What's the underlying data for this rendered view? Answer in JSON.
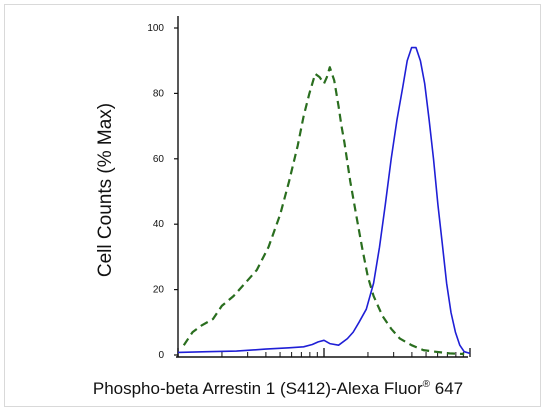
{
  "chart_data": {
    "type": "line",
    "title": "",
    "xlabel": {
      "main": "Phospho-beta Arrestin 1 (S412)-Alexa Fluor",
      "sup": "®",
      "tail": " 647"
    },
    "ylabel": "Cell Counts (% Max)",
    "xscale": "log",
    "xlim": [
      0,
      1
    ],
    "ylim": [
      0,
      100
    ],
    "yticks": [
      0,
      20,
      40,
      60,
      80,
      100
    ],
    "ytick_labels": [
      "0",
      "20",
      "40",
      "60",
      "80",
      "100"
    ],
    "grid": false,
    "series": [
      {
        "color": "#2a6e1f",
        "dash": "dashed",
        "points": [
          [
            0.02,
            3
          ],
          [
            0.05,
            7
          ],
          [
            0.08,
            9
          ],
          [
            0.12,
            11
          ],
          [
            0.15,
            15
          ],
          [
            0.19,
            18
          ],
          [
            0.23,
            22
          ],
          [
            0.27,
            26
          ],
          [
            0.31,
            33
          ],
          [
            0.35,
            43
          ],
          [
            0.38,
            53
          ],
          [
            0.41,
            64
          ],
          [
            0.43,
            73
          ],
          [
            0.45,
            80
          ],
          [
            0.47,
            86
          ],
          [
            0.485,
            85
          ],
          [
            0.5,
            83
          ],
          [
            0.51,
            85
          ],
          [
            0.52,
            88
          ],
          [
            0.535,
            84
          ],
          [
            0.55,
            76
          ],
          [
            0.56,
            70
          ],
          [
            0.57,
            65
          ],
          [
            0.59,
            53
          ],
          [
            0.61,
            43
          ],
          [
            0.63,
            33
          ],
          [
            0.65,
            24
          ],
          [
            0.67,
            18
          ],
          [
            0.7,
            12
          ],
          [
            0.73,
            8
          ],
          [
            0.76,
            5
          ],
          [
            0.8,
            3
          ],
          [
            0.84,
            1.5
          ],
          [
            0.88,
            1
          ],
          [
            0.93,
            0.5
          ],
          [
            0.98,
            0.3
          ]
        ]
      },
      {
        "color": "#1f1fd6",
        "dash": "solid",
        "points": [
          [
            0.0,
            0.8
          ],
          [
            0.1,
            1
          ],
          [
            0.2,
            1.2
          ],
          [
            0.3,
            1.8
          ],
          [
            0.38,
            2.2
          ],
          [
            0.43,
            2.5
          ],
          [
            0.46,
            3.2
          ],
          [
            0.48,
            4
          ],
          [
            0.5,
            4.5
          ],
          [
            0.52,
            3.5
          ],
          [
            0.55,
            3
          ],
          [
            0.58,
            5
          ],
          [
            0.6,
            7
          ],
          [
            0.62,
            10
          ],
          [
            0.645,
            14
          ],
          [
            0.67,
            22
          ],
          [
            0.69,
            33
          ],
          [
            0.71,
            46
          ],
          [
            0.73,
            60
          ],
          [
            0.75,
            72
          ],
          [
            0.77,
            82
          ],
          [
            0.785,
            90
          ],
          [
            0.8,
            94
          ],
          [
            0.815,
            94
          ],
          [
            0.83,
            90
          ],
          [
            0.845,
            83
          ],
          [
            0.86,
            72
          ],
          [
            0.875,
            60
          ],
          [
            0.89,
            46
          ],
          [
            0.905,
            34
          ],
          [
            0.92,
            22
          ],
          [
            0.935,
            13
          ],
          [
            0.95,
            7
          ],
          [
            0.965,
            3
          ],
          [
            0.98,
            1
          ],
          [
            1.0,
            0.5
          ]
        ]
      }
    ]
  }
}
